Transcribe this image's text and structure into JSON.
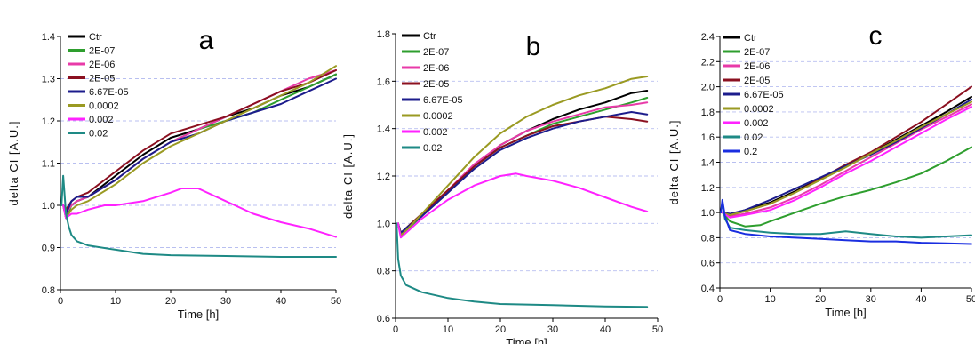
{
  "chart_data": [
    {
      "type": "line",
      "panel_label": "a",
      "xlabel": "Time [h]",
      "ylabel": "delta CI [A.U.]",
      "xlim": [
        0,
        50
      ],
      "ylim": [
        0.8,
        1.4
      ],
      "xticks": [
        0,
        10,
        20,
        30,
        40,
        50
      ],
      "yticks": [
        0.8,
        0.9,
        1.0,
        1.1,
        1.2,
        1.3,
        1.4
      ],
      "grid": "dashed horizontal",
      "legend": "top-left",
      "series": [
        {
          "name": "Ctr",
          "color": "#000000",
          "x": [
            0.5,
            1,
            2,
            3,
            5,
            10,
            15,
            20,
            25,
            30,
            35,
            40,
            45,
            50
          ],
          "y": [
            1.0,
            0.98,
            1.0,
            1.01,
            1.02,
            1.07,
            1.12,
            1.16,
            1.18,
            1.21,
            1.23,
            1.26,
            1.28,
            1.31
          ]
        },
        {
          "name": "2E-07",
          "color": "#2e9e2e",
          "x": [
            0.5,
            1,
            2,
            3,
            5,
            10,
            15,
            20,
            25,
            30,
            35,
            40,
            45,
            50
          ],
          "y": [
            1.0,
            0.97,
            1.0,
            1.01,
            1.02,
            1.06,
            1.11,
            1.15,
            1.18,
            1.2,
            1.22,
            1.25,
            1.28,
            1.31
          ]
        },
        {
          "name": "2E-06",
          "color": "#e83aa8",
          "x": [
            0.5,
            1,
            2,
            3,
            5,
            10,
            15,
            20,
            25,
            30,
            35,
            40,
            45,
            50
          ],
          "y": [
            1.0,
            0.98,
            1.0,
            1.01,
            1.02,
            1.06,
            1.11,
            1.15,
            1.18,
            1.21,
            1.24,
            1.27,
            1.3,
            1.32
          ]
        },
        {
          "name": "2E-05",
          "color": "#8b1020",
          "x": [
            0.5,
            1,
            2,
            3,
            5,
            10,
            15,
            20,
            25,
            30,
            35,
            40,
            45,
            50
          ],
          "y": [
            1.0,
            0.99,
            1.01,
            1.02,
            1.03,
            1.08,
            1.13,
            1.17,
            1.19,
            1.21,
            1.24,
            1.27,
            1.29,
            1.32
          ]
        },
        {
          "name": "6.67E-05",
          "color": "#1c1c8c",
          "x": [
            0.5,
            1,
            2,
            3,
            5,
            10,
            15,
            20,
            25,
            30,
            35,
            40,
            45,
            50
          ],
          "y": [
            1.0,
            0.98,
            1.01,
            1.02,
            1.02,
            1.06,
            1.11,
            1.15,
            1.17,
            1.2,
            1.22,
            1.24,
            1.27,
            1.3
          ]
        },
        {
          "name": "0.0002",
          "color": "#9a9a22",
          "x": [
            0.5,
            1,
            2,
            3,
            5,
            10,
            15,
            20,
            25,
            30,
            35,
            40,
            45,
            50
          ],
          "y": [
            1.0,
            0.97,
            0.99,
            1.0,
            1.01,
            1.05,
            1.1,
            1.14,
            1.17,
            1.2,
            1.23,
            1.26,
            1.29,
            1.33
          ]
        },
        {
          "name": "0.002",
          "color": "#ff22ff",
          "x": [
            0.5,
            1,
            2,
            3,
            5,
            8,
            10,
            15,
            20,
            22,
            25,
            30,
            35,
            40,
            45,
            50
          ],
          "y": [
            1.0,
            0.97,
            0.98,
            0.98,
            0.99,
            1.0,
            1.0,
            1.01,
            1.03,
            1.04,
            1.04,
            1.01,
            0.98,
            0.96,
            0.945,
            0.925
          ]
        },
        {
          "name": "0.02",
          "color": "#1e8a85",
          "x": [
            0.2,
            0.5,
            1,
            1.5,
            2,
            3,
            5,
            10,
            15,
            20,
            30,
            40,
            50
          ],
          "y": [
            1.0,
            1.07,
            0.98,
            0.95,
            0.93,
            0.915,
            0.905,
            0.895,
            0.885,
            0.882,
            0.88,
            0.878,
            0.878
          ]
        }
      ]
    },
    {
      "type": "line",
      "panel_label": "b",
      "xlabel": "Time [h]",
      "ylabel": "delta CI [A.U.]",
      "xlim": [
        0,
        50
      ],
      "ylim": [
        0.6,
        1.8
      ],
      "xticks": [
        0,
        10,
        20,
        30,
        40,
        50
      ],
      "yticks": [
        0.6,
        0.8,
        1.0,
        1.2,
        1.4,
        1.6,
        1.8
      ],
      "grid": "dashed horizontal",
      "legend": "top-left",
      "series": [
        {
          "name": "Ctr",
          "color": "#000000",
          "x": [
            0.5,
            1,
            2,
            5,
            10,
            15,
            20,
            25,
            30,
            35,
            40,
            45,
            48
          ],
          "y": [
            1.0,
            0.96,
            0.98,
            1.04,
            1.14,
            1.24,
            1.33,
            1.39,
            1.44,
            1.48,
            1.51,
            1.55,
            1.56
          ]
        },
        {
          "name": "2E-07",
          "color": "#2e9e2e",
          "x": [
            0.5,
            1,
            2,
            5,
            10,
            15,
            20,
            25,
            30,
            35,
            40,
            45,
            48
          ],
          "y": [
            1.0,
            0.95,
            0.97,
            1.03,
            1.13,
            1.24,
            1.32,
            1.37,
            1.42,
            1.45,
            1.48,
            1.51,
            1.53
          ]
        },
        {
          "name": "2E-06",
          "color": "#e83aa8",
          "x": [
            0.5,
            1,
            2,
            5,
            10,
            15,
            20,
            25,
            30,
            35,
            40,
            45,
            48
          ],
          "y": [
            1.0,
            0.95,
            0.97,
            1.04,
            1.14,
            1.25,
            1.33,
            1.39,
            1.43,
            1.46,
            1.49,
            1.5,
            1.51
          ]
        },
        {
          "name": "2E-05",
          "color": "#8b1020",
          "x": [
            0.5,
            1,
            2,
            5,
            10,
            15,
            20,
            25,
            30,
            35,
            40,
            45,
            48
          ],
          "y": [
            1.0,
            0.96,
            0.98,
            1.04,
            1.14,
            1.24,
            1.32,
            1.37,
            1.41,
            1.43,
            1.45,
            1.44,
            1.43
          ]
        },
        {
          "name": "6.67E-05",
          "color": "#1c1c8c",
          "x": [
            0.5,
            1,
            2,
            5,
            10,
            15,
            20,
            25,
            30,
            35,
            40,
            45,
            48
          ],
          "y": [
            1.0,
            0.96,
            0.98,
            1.03,
            1.13,
            1.23,
            1.31,
            1.36,
            1.4,
            1.43,
            1.45,
            1.47,
            1.46
          ]
        },
        {
          "name": "0.0002",
          "color": "#9a9a22",
          "x": [
            0.5,
            1,
            2,
            5,
            10,
            15,
            20,
            25,
            30,
            35,
            40,
            45,
            48
          ],
          "y": [
            1.0,
            0.95,
            0.97,
            1.04,
            1.16,
            1.28,
            1.38,
            1.45,
            1.5,
            1.54,
            1.57,
            1.61,
            1.62
          ]
        },
        {
          "name": "0.002",
          "color": "#ff22ff",
          "x": [
            0.5,
            1,
            2,
            5,
            10,
            15,
            20,
            23,
            25,
            30,
            35,
            40,
            45,
            48
          ],
          "y": [
            1.0,
            0.94,
            0.96,
            1.02,
            1.1,
            1.16,
            1.2,
            1.21,
            1.2,
            1.18,
            1.15,
            1.11,
            1.07,
            1.05
          ]
        },
        {
          "name": "0.02",
          "color": "#1e8a85",
          "x": [
            0.2,
            0.5,
            1,
            2,
            5,
            10,
            15,
            20,
            30,
            40,
            48
          ],
          "y": [
            1.0,
            0.85,
            0.78,
            0.74,
            0.71,
            0.685,
            0.67,
            0.66,
            0.655,
            0.65,
            0.648
          ]
        }
      ]
    },
    {
      "type": "line",
      "panel_label": "c",
      "xlabel": "Time [h]",
      "ylabel": "delta CI [A.U.]",
      "xlim": [
        0,
        50
      ],
      "ylim": [
        0.4,
        2.4
      ],
      "xticks": [
        0,
        10,
        20,
        30,
        40,
        50
      ],
      "yticks": [
        0.4,
        0.6,
        0.8,
        1.0,
        1.2,
        1.4,
        1.6,
        1.8,
        2.0,
        2.2,
        2.4
      ],
      "grid": "dashed horizontal",
      "legend": "top-left",
      "series": [
        {
          "name": "Ctr",
          "color": "#000000",
          "x": [
            0.5,
            2,
            5,
            10,
            15,
            20,
            25,
            30,
            35,
            40,
            45,
            50
          ],
          "y": [
            1.0,
            0.98,
            1.02,
            1.08,
            1.17,
            1.27,
            1.37,
            1.47,
            1.58,
            1.69,
            1.8,
            1.92
          ]
        },
        {
          "name": "2E-07",
          "color": "#2e9e2e",
          "x": [
            0.5,
            2,
            5,
            8,
            10,
            15,
            20,
            25,
            30,
            35,
            40,
            45,
            50
          ],
          "y": [
            1.0,
            0.93,
            0.89,
            0.9,
            0.93,
            1.0,
            1.07,
            1.13,
            1.18,
            1.24,
            1.31,
            1.41,
            1.52
          ]
        },
        {
          "name": "2E-06",
          "color": "#e83aa8",
          "x": [
            0.5,
            2,
            5,
            10,
            15,
            20,
            25,
            30,
            35,
            40,
            45,
            50
          ],
          "y": [
            1.0,
            0.97,
            0.99,
            1.04,
            1.12,
            1.22,
            1.33,
            1.44,
            1.55,
            1.66,
            1.76,
            1.86
          ]
        },
        {
          "name": "2E-05",
          "color": "#8b1020",
          "x": [
            0.5,
            2,
            5,
            10,
            15,
            20,
            25,
            30,
            35,
            40,
            45,
            50
          ],
          "y": [
            1.0,
            0.98,
            1.01,
            1.07,
            1.16,
            1.27,
            1.38,
            1.48,
            1.6,
            1.72,
            1.86,
            2.0
          ]
        },
        {
          "name": "6.67E-05",
          "color": "#1c1c8c",
          "x": [
            0.5,
            2,
            5,
            10,
            15,
            20,
            25,
            30,
            35,
            40,
            45,
            50
          ],
          "y": [
            1.0,
            0.99,
            1.02,
            1.1,
            1.19,
            1.28,
            1.37,
            1.46,
            1.56,
            1.67,
            1.78,
            1.9
          ]
        },
        {
          "name": "0.0002",
          "color": "#9a9a22",
          "x": [
            0.5,
            2,
            5,
            10,
            15,
            20,
            25,
            30,
            35,
            40,
            45,
            50
          ],
          "y": [
            1.0,
            0.98,
            1.01,
            1.07,
            1.16,
            1.26,
            1.36,
            1.47,
            1.57,
            1.68,
            1.78,
            1.88
          ]
        },
        {
          "name": "0.002",
          "color": "#ff22ff",
          "x": [
            0.5,
            2,
            5,
            10,
            15,
            20,
            25,
            30,
            35,
            40,
            45,
            50
          ],
          "y": [
            1.0,
            0.96,
            0.98,
            1.02,
            1.1,
            1.2,
            1.31,
            1.41,
            1.52,
            1.63,
            1.74,
            1.84
          ]
        },
        {
          "name": "0.02",
          "color": "#1e8a85",
          "x": [
            0.2,
            0.5,
            1,
            2,
            5,
            10,
            15,
            20,
            25,
            30,
            35,
            40,
            45,
            50
          ],
          "y": [
            1.0,
            1.08,
            0.95,
            0.88,
            0.86,
            0.84,
            0.83,
            0.83,
            0.85,
            0.83,
            0.81,
            0.8,
            0.81,
            0.82
          ]
        },
        {
          "name": "0.2",
          "color": "#1a2ee0",
          "x": [
            0.2,
            0.5,
            1,
            2,
            5,
            10,
            15,
            20,
            25,
            30,
            35,
            40,
            45,
            50
          ],
          "y": [
            1.0,
            1.1,
            0.97,
            0.86,
            0.83,
            0.81,
            0.8,
            0.79,
            0.78,
            0.77,
            0.77,
            0.76,
            0.755,
            0.75
          ]
        }
      ]
    }
  ]
}
